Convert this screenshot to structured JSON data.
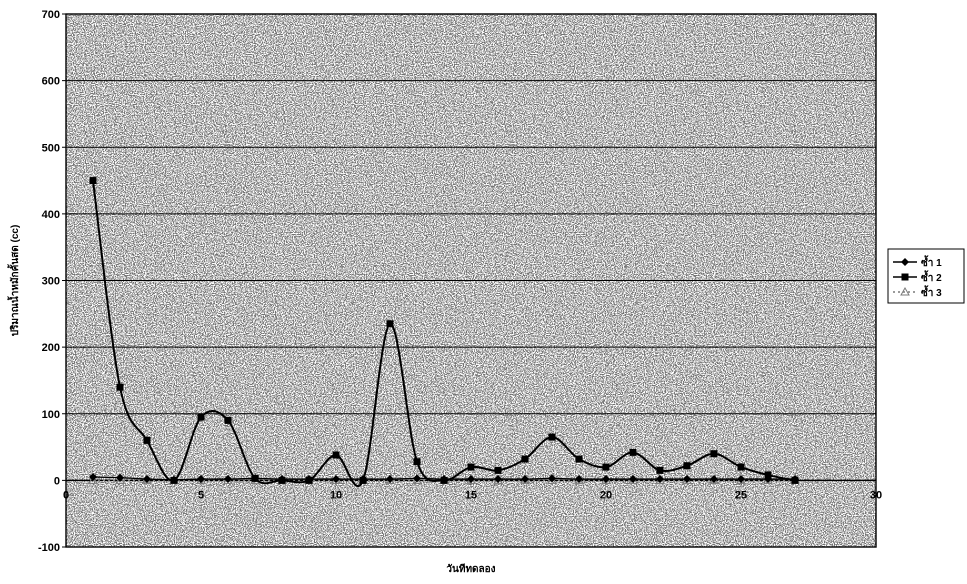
{
  "chart_data": {
    "type": "line",
    "title": "",
    "xlabel": "วันทีทดลอง",
    "ylabel": "ปริมาณน้ำหมักคั้นสด (cc)",
    "xlim": [
      0,
      30
    ],
    "ylim": [
      -100,
      700
    ],
    "x_ticks": [
      0,
      5,
      10,
      15,
      20,
      25,
      30
    ],
    "y_ticks": [
      -100,
      0,
      100,
      200,
      300,
      400,
      500,
      600,
      700
    ],
    "grid": "horizontal",
    "legend_position": "right",
    "series": [
      {
        "name": "ซ้ำ 1",
        "marker": "diamond",
        "color": "#000000",
        "x": [
          1,
          2,
          3,
          4,
          5,
          6,
          7,
          8,
          9,
          10,
          11,
          12,
          13,
          14,
          15,
          16,
          17,
          18,
          19,
          20,
          21,
          22,
          23,
          24,
          25,
          26,
          27
        ],
        "y": [
          5,
          4,
          2,
          1,
          2,
          2,
          3,
          2,
          2,
          2,
          2,
          2,
          3,
          2,
          2,
          2,
          2,
          3,
          2,
          2,
          2,
          2,
          2,
          2,
          2,
          2,
          2
        ]
      },
      {
        "name": "ซ้ำ 2",
        "marker": "square",
        "color": "#000000",
        "x": [
          1,
          2,
          3,
          4,
          5,
          6,
          7,
          8,
          9,
          10,
          11,
          12,
          13,
          14,
          15,
          16,
          17,
          18,
          19,
          20,
          21,
          22,
          23,
          24,
          25,
          26,
          27
        ],
        "y": [
          450,
          140,
          60,
          0,
          95,
          90,
          3,
          0,
          0,
          38,
          0,
          235,
          28,
          0,
          20,
          15,
          32,
          65,
          32,
          20,
          42,
          15,
          22,
          40,
          20,
          8,
          0
        ]
      },
      {
        "name": "ซ้ำ 3",
        "marker": "triangle",
        "color": "#7a7a7a",
        "x": [
          1,
          2,
          3,
          4,
          5,
          6,
          7,
          8,
          9,
          10,
          11,
          12,
          13,
          14,
          15,
          16,
          17,
          18,
          19,
          20,
          21,
          22,
          23,
          24,
          25,
          26,
          27
        ],
        "y": [
          0,
          0,
          0,
          0,
          0,
          0,
          0,
          0,
          0,
          0,
          0,
          0,
          0,
          0,
          0,
          0,
          0,
          0,
          0,
          0,
          0,
          0,
          0,
          0,
          0,
          0,
          0
        ]
      }
    ]
  }
}
